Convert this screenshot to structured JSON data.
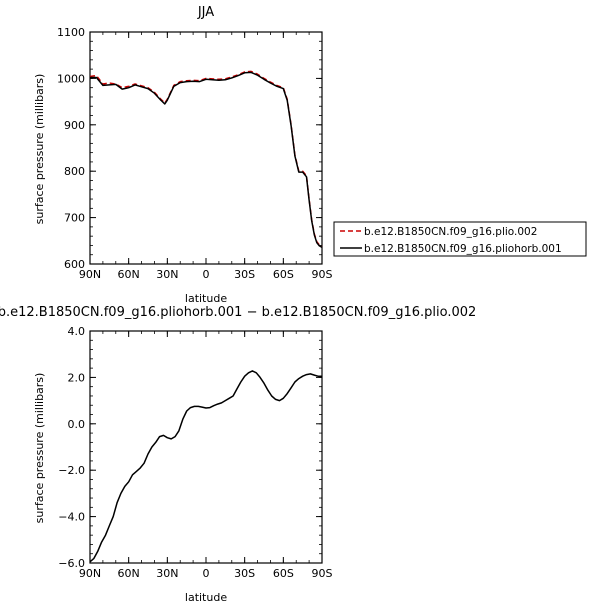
{
  "chart_data": [
    {
      "type": "line",
      "title": "JJA",
      "xlabel": "latitude",
      "ylabel": "surface pressure (millibars)",
      "x_tick_labels": [
        "90N",
        "60N",
        "30N",
        "0",
        "30S",
        "60S",
        "90S"
      ],
      "y_tick_labels": [
        "600",
        "700",
        "800",
        "900",
        "1000",
        "1100"
      ],
      "xlim": [
        90,
        -90
      ],
      "ylim": [
        600,
        1100
      ],
      "x_ticks": [
        90,
        60,
        30,
        0,
        -30,
        -60,
        -90
      ],
      "y_ticks": [
        600,
        700,
        800,
        900,
        1000,
        1100
      ],
      "x": [
        90,
        85,
        80,
        75,
        70,
        65,
        60,
        55,
        50,
        45,
        40,
        35,
        32,
        30,
        25,
        20,
        15,
        10,
        5,
        0,
        -5,
        -10,
        -15,
        -20,
        -25,
        -30,
        -35,
        -40,
        -45,
        -50,
        -55,
        -60,
        -63,
        -66,
        -69,
        -72,
        -75,
        -78,
        -80,
        -82,
        -84,
        -86,
        -88,
        -90
      ],
      "series": [
        {
          "name": "b.e12.B1850CN.f09_g16.plio.002",
          "color": "#cc0000",
          "dash": true,
          "values": [
            1004,
            1006,
            988,
            990,
            988,
            980,
            983,
            988,
            984,
            980,
            970,
            955,
            947,
            955,
            985,
            993,
            995,
            996,
            995,
            1000,
            999,
            998,
            999,
            1003,
            1008,
            1014,
            1015,
            1009,
            1000,
            992,
            985,
            980,
            955,
            900,
            835,
            800,
            800,
            790,
            740,
            695,
            665,
            648,
            641,
            638
          ]
        },
        {
          "name": "b.e12.B1850CN.f09_g16.pliohorb.001",
          "color": "#000000",
          "dash": false,
          "values": [
            1002,
            1002,
            985,
            986,
            987,
            977,
            980,
            986,
            982,
            978,
            968,
            953,
            945,
            953,
            983,
            991,
            993,
            994,
            993,
            998,
            997,
            996,
            997,
            1001,
            1006,
            1012,
            1013,
            1007,
            998,
            990,
            983,
            978,
            953,
            898,
            833,
            798,
            798,
            788,
            738,
            693,
            663,
            646,
            639,
            636
          ]
        }
      ],
      "legend_position": "right"
    },
    {
      "type": "line",
      "title": "b.e12.B1850CN.f09_g16.pliohorb.001 − b.e12.B1850CN.f09_g16.plio.002",
      "xlabel": "latitude",
      "ylabel": "surface pressure (millibars)",
      "x_tick_labels": [
        "90N",
        "60N",
        "30N",
        "0",
        "30S",
        "60S",
        "90S"
      ],
      "y_tick_labels": [
        "−6.0",
        "−4.0",
        "−2.0",
        "0.0",
        "2.0",
        "4.0"
      ],
      "xlim": [
        90,
        -90
      ],
      "ylim": [
        -6,
        4
      ],
      "x_ticks": [
        90,
        60,
        30,
        0,
        -30,
        -60,
        -90
      ],
      "y_ticks": [
        -6,
        -4,
        -2,
        0,
        2,
        4
      ],
      "x": [
        90,
        87,
        84,
        81,
        78,
        75,
        72,
        69,
        66,
        63,
        60,
        57,
        54,
        51,
        48,
        45,
        42,
        39,
        36,
        33,
        30,
        27,
        24,
        21,
        18,
        15,
        12,
        9,
        6,
        3,
        0,
        -3,
        -6,
        -9,
        -12,
        -15,
        -18,
        -21,
        -24,
        -27,
        -30,
        -33,
        -36,
        -39,
        -42,
        -45,
        -48,
        -51,
        -54,
        -57,
        -60,
        -63,
        -66,
        -69,
        -72,
        -75,
        -78,
        -81,
        -84,
        -87,
        -90
      ],
      "series": [
        {
          "color": "#000000",
          "values": [
            -5.95,
            -5.8,
            -5.5,
            -5.1,
            -4.8,
            -4.4,
            -4.0,
            -3.4,
            -3.0,
            -2.7,
            -2.5,
            -2.2,
            -2.05,
            -1.9,
            -1.7,
            -1.3,
            -1.0,
            -0.8,
            -0.55,
            -0.5,
            -0.6,
            -0.65,
            -0.55,
            -0.3,
            0.2,
            0.55,
            0.7,
            0.75,
            0.75,
            0.72,
            0.68,
            0.7,
            0.78,
            0.85,
            0.9,
            1.0,
            1.1,
            1.2,
            1.5,
            1.8,
            2.05,
            2.2,
            2.28,
            2.2,
            2.0,
            1.75,
            1.45,
            1.2,
            1.05,
            1.0,
            1.1,
            1.3,
            1.55,
            1.8,
            1.95,
            2.05,
            2.12,
            2.15,
            2.1,
            2.05,
            2.05
          ]
        }
      ]
    }
  ]
}
